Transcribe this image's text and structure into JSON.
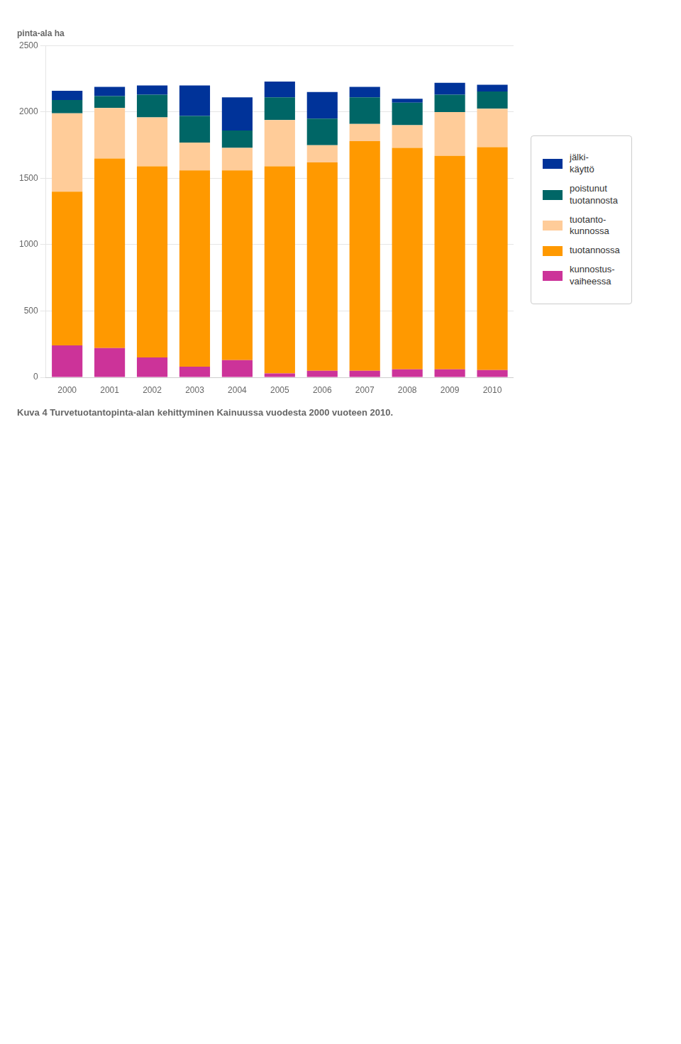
{
  "chart_data": {
    "type": "bar",
    "title": "pinta-ala ha",
    "subtitle": "Kuva 4 Turvetuotantopinta-alan kehittyminen Kainuussa vuodesta 2000 vuoteen 2010.",
    "categories": [
      "2000",
      "2001",
      "2002",
      "2003",
      "2004",
      "2005",
      "2006",
      "2007",
      "2008",
      "2009",
      "2010"
    ],
    "series": [
      {
        "name": "kunnostus-\nvaiheessa",
        "color": "#CC3399",
        "values": [
          240,
          220,
          150,
          80,
          130,
          30,
          50,
          50,
          60,
          60,
          55
        ]
      },
      {
        "name": "tuotannossa",
        "color": "#FF9900",
        "values": [
          1160,
          1430,
          1440,
          1480,
          1430,
          1560,
          1570,
          1730,
          1670,
          1610,
          1680
        ]
      },
      {
        "name": "tuotanto-\nkunnossa",
        "color": "#FFCC99",
        "values": [
          590,
          380,
          370,
          210,
          170,
          350,
          130,
          130,
          170,
          330,
          290
        ]
      },
      {
        "name": "poistunut\ntuotannosta",
        "color": "#006666",
        "values": [
          100,
          90,
          170,
          200,
          130,
          170,
          200,
          200,
          170,
          130,
          130
        ]
      },
      {
        "name": "jälki-\nkäyttö",
        "color": "#003399",
        "values": [
          70,
          70,
          70,
          230,
          250,
          120,
          200,
          80,
          30,
          90,
          50
        ]
      }
    ],
    "stacked": true,
    "ylim": [
      0,
      2500
    ],
    "yticks": [
      0,
      500,
      1000,
      1500,
      2000,
      2500
    ],
    "grid": true,
    "legend": "right"
  }
}
